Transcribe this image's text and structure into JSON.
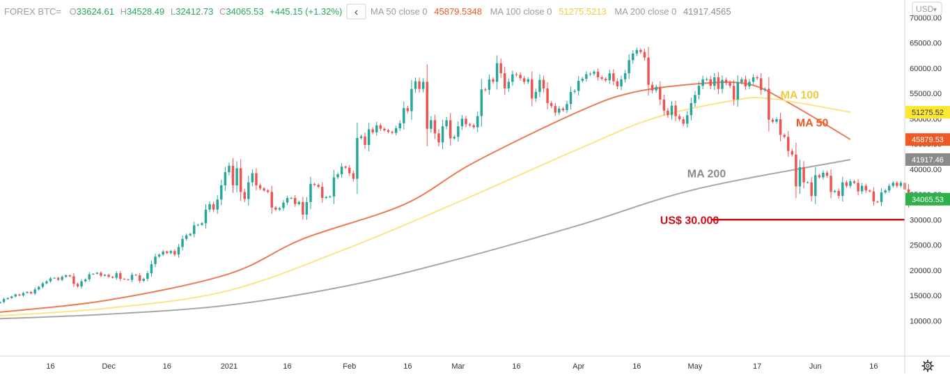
{
  "header": {
    "symbol": "FOREX BTC=",
    "open_label": "O",
    "open": "33624.61",
    "high_label": "H",
    "high": "34528.49",
    "low_label": "L",
    "low": "32412.73",
    "close_label": "C",
    "close": "34065.53",
    "change": "+445.15 (+1.32%)",
    "collapse_glyph": "‹",
    "ma50_label": "MA 50 close 0",
    "ma50_value": "45879.5348",
    "ma100_label": "MA 100 close 0",
    "ma100_value": "51275.5213",
    "ma200_label": "MA 200 close 0",
    "ma200_value": "41917.4565"
  },
  "currency_selector": {
    "label": "USD",
    "glyph": "▾"
  },
  "settings_icon": "gear-icon",
  "colors": {
    "up": "#26a69a",
    "down": "#ef5350",
    "up_text": "#26a65b",
    "ma50": "#ee7a53",
    "ma100": "#fde48a",
    "ma200": "#a6a6a6",
    "support": "#cc0e17",
    "axis_text": "#333333"
  },
  "chart_data": {
    "type": "candlestick",
    "y_axis": {
      "ticks": [
        "10000.00",
        "15000.00",
        "20000.00",
        "25000.00",
        "30000.00",
        "35000.00",
        "40000.00",
        "45000.00",
        "50000.00",
        "55000.00",
        "60000.00",
        "65000.00",
        "70000.00"
      ],
      "range": [
        3000,
        73500
      ],
      "side": "right"
    },
    "x_axis": {
      "ticks": [
        "16",
        "Dec",
        "16",
        "2021",
        "16",
        "Feb",
        "16",
        "Mar",
        "16",
        "Apr",
        "16",
        "May",
        "17",
        "Jun",
        "16"
      ],
      "range": [
        "2020-11-03",
        "2021-06-24"
      ]
    },
    "x_tick_dates": [
      "2020-11-16",
      "2020-12-01",
      "2020-12-16",
      "2021-01-01",
      "2021-01-16",
      "2021-02-01",
      "2021-02-16",
      "2021-03-01",
      "2021-03-16",
      "2021-04-01",
      "2021-04-16",
      "2021-05-01",
      "2021-05-17",
      "2021-06-01",
      "2021-06-16"
    ],
    "candles_start_date": "2020-11-03",
    "closes": [
      13700,
      14300,
      14500,
      14800,
      15200,
      15000,
      15500,
      15700,
      15400,
      16200,
      16700,
      17400,
      17800,
      18400,
      18500,
      18100,
      18700,
      19000,
      18800,
      17300,
      16800,
      17800,
      18200,
      19200,
      19300,
      19500,
      18900,
      19100,
      18700,
      18500,
      19400,
      18300,
      18200,
      18100,
      19100,
      19000,
      17900,
      18300,
      19400,
      21200,
      22700,
      23100,
      23700,
      23400,
      23800,
      23100,
      24600,
      26200,
      26900,
      27200,
      28900,
      29000,
      29300,
      32000,
      33100,
      32000,
      34000,
      36800,
      39400,
      40700,
      36800,
      40200,
      35500,
      34100,
      37400,
      39200,
      36800,
      36200,
      35800,
      35500,
      32400,
      32000,
      32300,
      33400,
      34300,
      34300,
      33100,
      33500,
      31000,
      33500,
      37100,
      36900,
      36500,
      34300,
      34500,
      34600,
      38400,
      39000,
      40500,
      40300,
      39200,
      38100,
      46200,
      46500,
      44800,
      47900,
      47300,
      48700,
      48000,
      47700,
      47400,
      47200,
      48100,
      49100,
      52100,
      51500,
      55900,
      57400,
      55900,
      57300,
      48000,
      49700,
      47100,
      45300,
      48500,
      49700,
      46100,
      46400,
      48500,
      50000,
      48900,
      48700,
      48300,
      50500,
      55800,
      55700,
      57800,
      57300,
      61000,
      59000,
      56000,
      57300,
      58800,
      58700,
      58000,
      57300,
      57800,
      54000,
      55300,
      57700,
      56000,
      53100,
      52500,
      51200,
      52000,
      51700,
      52900,
      55300,
      55500,
      57500,
      57900,
      58800,
      58900,
      59300,
      58200,
      57900,
      57600,
      59000,
      57400,
      56400,
      57800,
      59000,
      61600,
      62900,
      63600,
      63200,
      62100,
      56700,
      55600,
      56300,
      53800,
      51600,
      50700,
      52600,
      50500,
      49900,
      49000,
      50700,
      53100,
      54700,
      56500,
      57800,
      57800,
      56500,
      58200,
      55900,
      57700,
      57100,
      56500,
      53800,
      57200,
      57800,
      56400,
      57300,
      58200,
      58000,
      55700,
      55900,
      49800,
      49400,
      49900,
      46800,
      46400,
      43600,
      42900,
      36600,
      40400,
      37400,
      37400,
      34700,
      38800,
      38400,
      39300,
      38700,
      35500,
      35700,
      34700,
      37400,
      36700,
      37600,
      37300,
      35600,
      36700,
      35800,
      35600,
      33600,
      33500,
      35400,
      35800,
      36700,
      37300,
      36700,
      37300,
      36000,
      33400,
      33500,
      34000
    ],
    "series": [
      {
        "name": "MA 50",
        "label": "MA 50",
        "x": [
          "2020-11-03",
          "2020-12-01",
          "2021-01-01",
          "2021-01-20",
          "2021-02-15",
          "2021-03-05",
          "2021-04-01",
          "2021-04-15",
          "2021-05-03",
          "2021-05-15",
          "2021-05-25",
          "2021-06-10"
        ],
        "values": [
          11700,
          14100,
          19300,
          26200,
          33000,
          41300,
          51400,
          55200,
          57000,
          56800,
          53200,
          45900
        ]
      },
      {
        "name": "MA 100",
        "label": "MA 100",
        "x": [
          "2020-11-03",
          "2020-12-01",
          "2021-01-01",
          "2021-02-01",
          "2021-03-01",
          "2021-04-01",
          "2021-04-20",
          "2021-05-10",
          "2021-05-20",
          "2021-06-10"
        ],
        "values": [
          11000,
          12500,
          16000,
          24500,
          33500,
          44000,
          50000,
          53500,
          54000,
          51300
        ]
      },
      {
        "name": "MA 200",
        "label": "MA 200",
        "x": [
          "2020-11-03",
          "2020-12-01",
          "2021-01-01",
          "2021-02-01",
          "2021-03-01",
          "2021-04-01",
          "2021-05-01",
          "2021-06-10"
        ],
        "values": [
          10400,
          11300,
          13100,
          17000,
          22200,
          28900,
          36000,
          41900
        ]
      }
    ],
    "price_labels": [
      {
        "value": "51275.52",
        "y": 51275.52,
        "bg": "#fde735",
        "fg": "#333333"
      },
      {
        "value": "45879.53",
        "y": 45879.53,
        "bg": "#ee5a24",
        "fg": "#ffffff"
      },
      {
        "value": "41917.46",
        "y": 41917.46,
        "bg": "#8b8b8b",
        "fg": "#ffffff"
      },
      {
        "value": "34065.53",
        "y": 34065.53,
        "bg": "#2eb04b",
        "fg": "#ffffff"
      }
    ],
    "annotations": [
      {
        "text": "MA 100",
        "x": "2021-05-23",
        "y": 54800,
        "color": "#f1cb3e"
      },
      {
        "text": "MA 50",
        "x": "2021-05-27",
        "y": 49300,
        "color": "#ee5a24"
      },
      {
        "text": "MA 200",
        "x": "2021-04-29",
        "y": 39200,
        "color": "#8b8b8b"
      },
      {
        "text": "US$ 30.000",
        "x": "2021-04-22",
        "y": 30000,
        "color": "#cc0e17"
      }
    ],
    "support_line": {
      "y": 30000,
      "x_from": "2021-05-06",
      "x_to": "2021-06-24"
    }
  }
}
